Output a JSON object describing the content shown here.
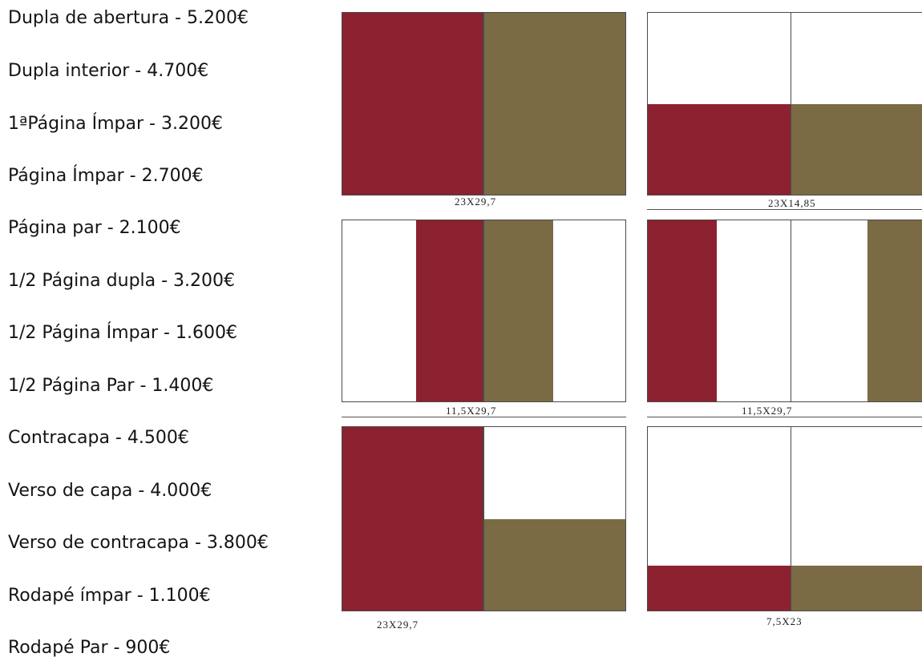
{
  "colors": {
    "red": "#8c2130",
    "olive": "#7a6b44"
  },
  "price_list": [
    "Dupla de abertura - 5.200€",
    "Dupla interior - 4.700€",
    "1ªPágina Ímpar - 3.200€",
    "Página Ímpar - 2.700€",
    "Página par - 2.100€",
    "1/2 Página dupla - 3.200€",
    "1/2 Página Ímpar - 1.600€",
    "1/2 Página Par - 1.400€",
    "Contracapa - 4.500€",
    "Verso de capa - 4.000€",
    "Verso de contracapa - 3.800€",
    "Rodapé ímpar - 1.100€",
    "Rodapé Par - 900€"
  ],
  "diagrams": {
    "d1": {
      "caption": "23X29,7"
    },
    "d2": {
      "caption": "23X14,85"
    },
    "d3": {
      "caption": "11,5X29,7"
    },
    "d4": {
      "caption": "11,5X29,7"
    },
    "d5": {
      "caption": "23X29,7"
    },
    "d6": {
      "caption": "7,5X23"
    }
  }
}
